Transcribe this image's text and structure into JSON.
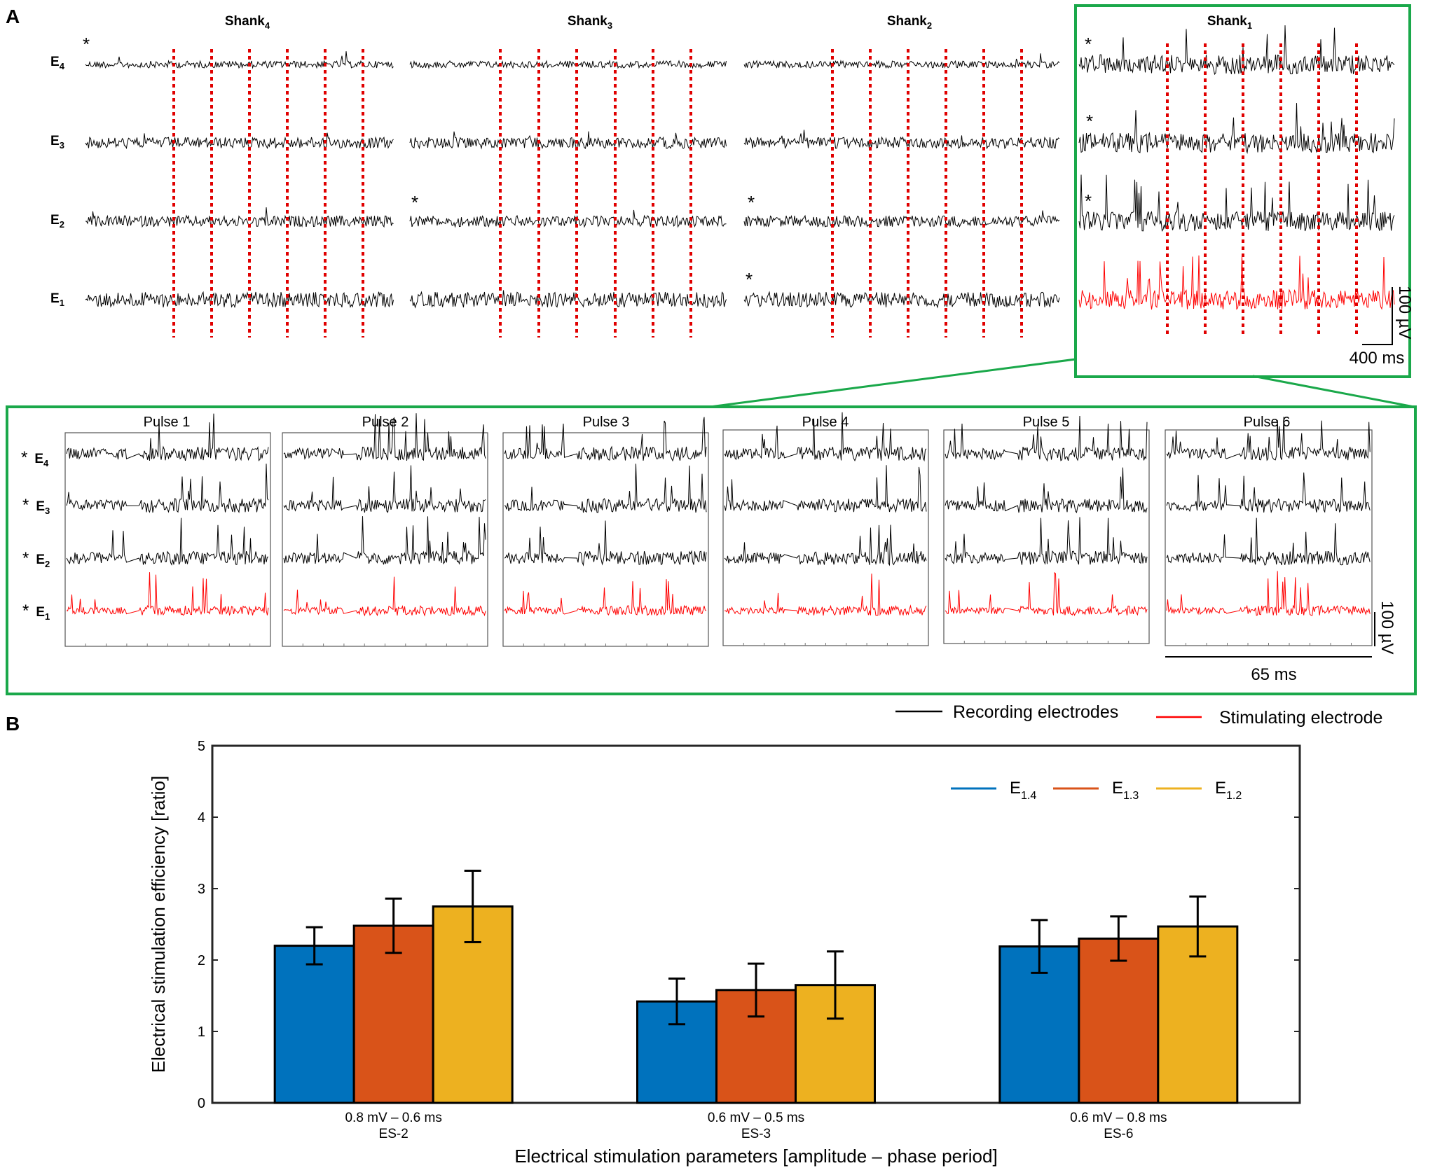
{
  "panel_a": {
    "label": "A",
    "shanks": [
      {
        "base": "Shank",
        "sub": "4"
      },
      {
        "base": "Shank",
        "sub": "3"
      },
      {
        "base": "Shank",
        "sub": "2"
      },
      {
        "base": "Shank",
        "sub": "1"
      }
    ],
    "electrodes": [
      {
        "base": "E",
        "sub": "4"
      },
      {
        "base": "E",
        "sub": "3"
      },
      {
        "base": "E",
        "sub": "2"
      },
      {
        "base": "E",
        "sub": "1"
      }
    ],
    "asterisk": "*",
    "overview_scale": {
      "amplitude": "100 µV",
      "time": "400 ms"
    },
    "pulse_titles": [
      "Pulse 1",
      "Pulse 2",
      "Pulse 3",
      "Pulse 4",
      "Pulse 5",
      "Pulse 6"
    ],
    "pulse_scale": {
      "amplitude": "100 µV",
      "time": "65 ms"
    },
    "legend": {
      "recording": "Recording electrodes",
      "stimulating": "Stimulating electrode"
    },
    "colors": {
      "recording": "#000000",
      "stimulating": "#ff0000",
      "stim_marker": "#e00000",
      "highlight_box": "#1aa84a"
    }
  },
  "chart_data": {
    "type": "bar",
    "panel_label": "B",
    "title": "",
    "xlabel": "Electrical stimulation parameters [amplitude – phase period]",
    "ylabel": "Electrical stimulation efficiency [ratio]",
    "ylim": [
      0,
      5
    ],
    "yticks": [
      "0",
      "1",
      "2",
      "3",
      "4",
      "5"
    ],
    "categories": [
      {
        "param": "0.8 mV – 0.6 ms",
        "name": "ES-2"
      },
      {
        "param": "0.6 mV – 0.5 ms",
        "name": "ES-3"
      },
      {
        "param": "0.6 mV – 0.8 ms",
        "name": "ES-6"
      }
    ],
    "series": [
      {
        "name": "E",
        "sub": "1.4",
        "color": "#0072bd",
        "values": [
          2.2,
          1.42,
          2.19
        ],
        "errors": [
          0.26,
          0.32,
          0.37
        ]
      },
      {
        "name": "E",
        "sub": "1.3",
        "color": "#d95319",
        "values": [
          2.48,
          1.58,
          2.3
        ],
        "errors": [
          0.38,
          0.37,
          0.31
        ]
      },
      {
        "name": "E",
        "sub": "1.2",
        "color": "#edb120",
        "values": [
          2.75,
          1.65,
          2.47
        ],
        "errors": [
          0.5,
          0.47,
          0.42
        ]
      }
    ],
    "legend_position": "top-right"
  }
}
